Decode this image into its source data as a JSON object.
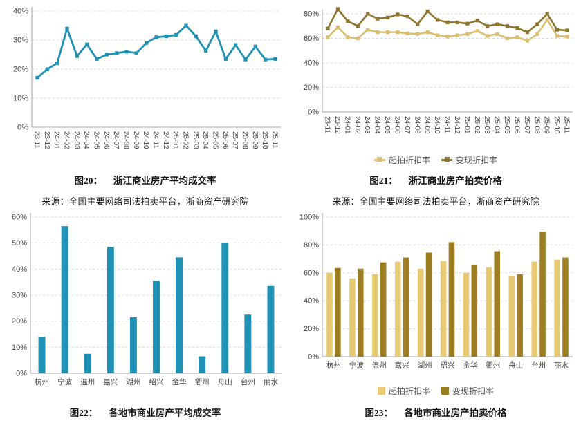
{
  "page": {
    "background": "#ffffff"
  },
  "chart_data": [
    {
      "id": "fig20",
      "type": "line",
      "caption_prefix": "图20：",
      "caption_title": "浙江商业房产平均成交率",
      "source": "来源：全国主要网络司法拍卖平台，浙商资产研究院",
      "x": [
        "23-11",
        "23-12",
        "24-01",
        "24-02",
        "24-03",
        "24-04",
        "24-05",
        "24-06",
        "24-07",
        "24-08",
        "24-09",
        "24-10",
        "24-11",
        "24-12",
        "25-01",
        "25-02",
        "25-03",
        "25-04",
        "25-05",
        "25-06",
        "25-07",
        "25-08",
        "25-09",
        "25-10",
        "25-11"
      ],
      "series": [
        {
          "color": "#1e91b4",
          "values": [
            17,
            20,
            22,
            34,
            24.5,
            28.5,
            23.5,
            25,
            25.5,
            26,
            25.5,
            29,
            31,
            31.3,
            31.8,
            35,
            31.3,
            26.3,
            33,
            23.5,
            28.3,
            23.3,
            27.8,
            23.3,
            23.5
          ]
        }
      ],
      "ylim": [
        0,
        40
      ],
      "ytick_step": 10,
      "grid": "dashed-horizontal",
      "legend_position": "none"
    },
    {
      "id": "fig21",
      "type": "line",
      "caption_prefix": "图21：",
      "caption_title": "浙江商业房产拍卖价格",
      "source": "来源：全国主要网络司法拍卖平台，浙商资产研究院",
      "x": [
        "23-11",
        "23-12",
        "24-01",
        "24-02",
        "24-03",
        "24-04",
        "24-05",
        "24-06",
        "24-07",
        "24-08",
        "24-09",
        "24-10",
        "24-11",
        "24-12",
        "25-01",
        "25-02",
        "25-03",
        "25-04",
        "25-05",
        "25-06",
        "25-07",
        "25-08",
        "25-09",
        "25-10",
        "25-11"
      ],
      "series": [
        {
          "name": "起拍折扣率",
          "color": "#dcbe71",
          "values": [
            61,
            69,
            61,
            60,
            67,
            65,
            65,
            65,
            64,
            63.5,
            65,
            62.5,
            61.5,
            62.5,
            63.5,
            66,
            62,
            63.5,
            60,
            61,
            58,
            63.5,
            75,
            62,
            61.5
          ]
        },
        {
          "name": "变现折扣率",
          "color": "#8e7630",
          "values": [
            68,
            84,
            74,
            70,
            80,
            76,
            77,
            79.5,
            78,
            71.5,
            82,
            75,
            73,
            73,
            72,
            74.5,
            70,
            71.5,
            70,
            68.5,
            65,
            71.5,
            80,
            67,
            66.5
          ]
        }
      ],
      "ylim": [
        0,
        80
      ],
      "ytick_step": 20,
      "grid": "dashed-horizontal",
      "legend_position": "bottom"
    },
    {
      "id": "fig22",
      "type": "bar",
      "caption_prefix": "图22：",
      "caption_title": "各地市商业房产平均成交率",
      "categories": [
        "杭州",
        "宁波",
        "温州",
        "嘉兴",
        "湖州",
        "绍兴",
        "金华",
        "衢州",
        "舟山",
        "台州",
        "丽水"
      ],
      "values": [
        14,
        56.5,
        7.5,
        48.5,
        21.5,
        35.5,
        44.5,
        6.5,
        50,
        22.5,
        33.5
      ],
      "color": "#1e91b4",
      "ylim": [
        0,
        60
      ],
      "ytick_step": 10,
      "grid": "dashed-horizontal",
      "legend_position": "none"
    },
    {
      "id": "fig23",
      "type": "bar",
      "caption_prefix": "图23：",
      "caption_title": "各地市商业房产拍卖价格",
      "categories": [
        "杭州",
        "宁波",
        "温州",
        "嘉兴",
        "湖州",
        "绍兴",
        "金华",
        "衢州",
        "舟山",
        "台州",
        "丽水"
      ],
      "series": [
        {
          "name": "起拍折扣率",
          "color": "#e7c973",
          "values": [
            60,
            56,
            59,
            68,
            63,
            68.5,
            60,
            64,
            58,
            68,
            69.5
          ]
        },
        {
          "name": "变现折扣率",
          "color": "#9c7d22",
          "values": [
            63.5,
            63,
            67.5,
            71,
            74.5,
            82,
            65.5,
            75.5,
            59,
            89.5,
            71
          ]
        }
      ],
      "ylim": [
        0,
        100
      ],
      "ytick_step": 20,
      "grid": "dashed-horizontal",
      "legend_position": "bottom"
    }
  ],
  "style": {
    "gridline_color": "#d9d9d9",
    "axis_color": "#a6a6a6",
    "tick_label_color": "#404040"
  }
}
